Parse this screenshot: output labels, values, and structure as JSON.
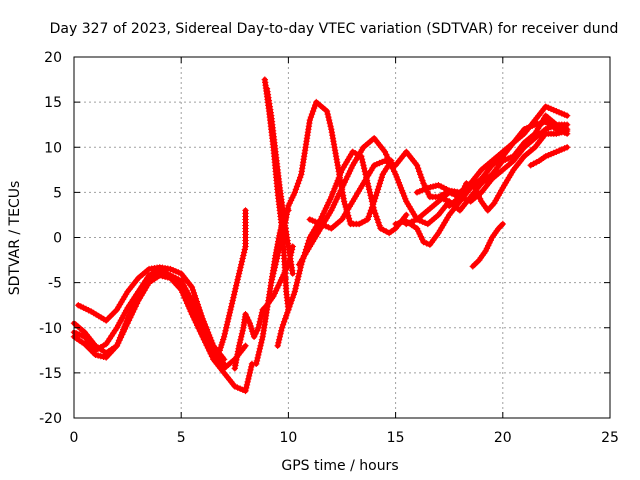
{
  "chart_data": {
    "type": "scatter",
    "title": "Day 327 of 2023, Sidereal Day-to-day VTEC variation (SDTVAR) for receiver dund",
    "xlabel": "GPS time / hours",
    "ylabel": "SDTVAR / TECUs",
    "xlim": [
      0,
      25
    ],
    "ylim": [
      -20,
      20
    ],
    "xticks": [
      0,
      5,
      10,
      15,
      20,
      25
    ],
    "yticks": [
      -20,
      -15,
      -10,
      -5,
      0,
      5,
      10,
      15,
      20
    ],
    "xtick_labels": [
      "0",
      "5",
      "10",
      "15",
      "20",
      "25"
    ],
    "ytick_labels": [
      "-20",
      "-15",
      "-10",
      "-5",
      "0",
      "5",
      "10",
      "15",
      "20"
    ],
    "grid": true,
    "legend": "none",
    "marker": "plus",
    "color": "#ff0000",
    "series": [
      {
        "points": [
          [
            0,
            -9.5
          ],
          [
            0.5,
            -10.5
          ],
          [
            1,
            -12
          ],
          [
            1.5,
            -12.8
          ],
          [
            2,
            -12
          ],
          [
            2.5,
            -9
          ],
          [
            3,
            -6.5
          ],
          [
            3.5,
            -4.5
          ],
          [
            4,
            -3.8
          ],
          [
            4.5,
            -4.5
          ],
          [
            5,
            -5.5
          ],
          [
            5.5,
            -8
          ],
          [
            6,
            -10.5
          ],
          [
            6.5,
            -13
          ],
          [
            7,
            -14.5
          ],
          [
            7.5,
            -13.5
          ],
          [
            8,
            -12
          ]
        ]
      },
      {
        "points": [
          [
            0,
            -11
          ],
          [
            0.5,
            -11.8
          ],
          [
            1,
            -13
          ],
          [
            1.5,
            -13.3
          ],
          [
            2,
            -12
          ],
          [
            2.5,
            -9.5
          ],
          [
            3,
            -7
          ],
          [
            3.5,
            -5
          ],
          [
            4,
            -4.2
          ],
          [
            4.5,
            -4.5
          ],
          [
            5,
            -5.8
          ],
          [
            5.5,
            -8.5
          ],
          [
            6,
            -11
          ],
          [
            6.5,
            -13.5
          ],
          [
            7,
            -15
          ],
          [
            7.5,
            -16.5
          ],
          [
            8,
            -17
          ],
          [
            8.3,
            -14
          ]
        ]
      },
      {
        "points": [
          [
            0.2,
            -7.5
          ],
          [
            0.8,
            -8.2
          ],
          [
            1.5,
            -9.2
          ],
          [
            2,
            -8
          ],
          [
            2.5,
            -6
          ],
          [
            3,
            -4.5
          ],
          [
            3.5,
            -3.5
          ],
          [
            4,
            -3.3
          ],
          [
            4.5,
            -3.5
          ],
          [
            5,
            -4
          ],
          [
            5.5,
            -5.5
          ],
          [
            6,
            -9
          ],
          [
            6.5,
            -12
          ],
          [
            7,
            -13.5
          ]
        ]
      },
      {
        "points": [
          [
            0,
            -10.5
          ],
          [
            0.5,
            -11
          ],
          [
            1,
            -12.5
          ],
          [
            1.5,
            -11.8
          ],
          [
            2,
            -10
          ],
          [
            2.5,
            -7.8
          ],
          [
            3,
            -6
          ],
          [
            3.5,
            -4.2
          ],
          [
            4,
            -3.6
          ],
          [
            4.5,
            -4.2
          ],
          [
            5,
            -4.8
          ],
          [
            5.5,
            -7
          ],
          [
            6,
            -10
          ],
          [
            6.5,
            -12.5
          ],
          [
            7,
            -14
          ]
        ]
      },
      {
        "points": [
          [
            6.8,
            -12.5
          ],
          [
            7,
            -11
          ],
          [
            7.2,
            -9
          ],
          [
            7.4,
            -7
          ],
          [
            7.6,
            -5
          ],
          [
            7.8,
            -3
          ],
          [
            8,
            -1
          ],
          [
            8,
            2
          ],
          [
            8,
            3
          ]
        ]
      },
      {
        "points": [
          [
            7.5,
            -14.5
          ],
          [
            7.7,
            -12
          ],
          [
            7.9,
            -10
          ],
          [
            8,
            -8.5
          ],
          [
            8.2,
            -9.5
          ],
          [
            8.4,
            -11
          ],
          [
            8.6,
            -10
          ],
          [
            8.8,
            -8
          ],
          [
            9,
            -7.5
          ],
          [
            9.3,
            -6.5
          ],
          [
            9.6,
            -5
          ],
          [
            10,
            -3
          ],
          [
            10.2,
            -1
          ]
        ]
      },
      {
        "points": [
          [
            8.5,
            -14
          ],
          [
            8.8,
            -11
          ],
          [
            9,
            -8
          ],
          [
            9.2,
            -5
          ],
          [
            9.4,
            -2
          ],
          [
            9.6,
            0.5
          ],
          [
            9.8,
            2.5
          ],
          [
            10,
            3
          ]
        ]
      },
      {
        "points": [
          [
            8.9,
            17.5
          ],
          [
            9.1,
            14
          ],
          [
            9.3,
            10
          ],
          [
            9.5,
            5
          ],
          [
            9.7,
            1
          ],
          [
            9.8,
            -2
          ],
          [
            9.9,
            -6
          ],
          [
            10,
            -8
          ]
        ]
      },
      {
        "points": [
          [
            9.0,
            16.5
          ],
          [
            9.2,
            13.5
          ],
          [
            9.4,
            9.5
          ],
          [
            9.6,
            5.5
          ],
          [
            9.8,
            2
          ],
          [
            10,
            -1
          ],
          [
            10.2,
            -4
          ]
        ]
      },
      {
        "points": [
          [
            9.2,
            -5
          ],
          [
            9.4,
            -3
          ],
          [
            9.6,
            -1
          ],
          [
            9.8,
            1
          ],
          [
            10,
            3.5
          ],
          [
            10.3,
            5
          ],
          [
            10.6,
            7
          ],
          [
            10.8,
            10
          ],
          [
            11,
            13
          ],
          [
            11.3,
            15
          ],
          [
            11.8,
            14
          ],
          [
            12,
            12
          ],
          [
            12.3,
            8
          ],
          [
            12.6,
            4
          ],
          [
            12.9,
            1.5
          ],
          [
            13.3,
            1.5
          ],
          [
            13.7,
            2
          ],
          [
            14,
            4
          ],
          [
            14.4,
            7
          ],
          [
            14.8,
            8.5
          ]
        ]
      },
      {
        "points": [
          [
            9.5,
            -12
          ],
          [
            9.7,
            -10
          ],
          [
            10,
            -8
          ],
          [
            10.3,
            -6
          ],
          [
            10.6,
            -3
          ],
          [
            11,
            0
          ],
          [
            11.5,
            2
          ],
          [
            12,
            4.5
          ],
          [
            12.5,
            7.5
          ],
          [
            13,
            9.5
          ],
          [
            13.4,
            9
          ],
          [
            13.7,
            6
          ],
          [
            14,
            3
          ],
          [
            14.3,
            1
          ],
          [
            14.7,
            0.5
          ],
          [
            15,
            1
          ],
          [
            15.5,
            2.5
          ]
        ]
      },
      {
        "points": [
          [
            10.5,
            -3
          ],
          [
            11,
            -1
          ],
          [
            11.5,
            1
          ],
          [
            12,
            3
          ],
          [
            12.5,
            5.5
          ],
          [
            13,
            8
          ],
          [
            13.5,
            10
          ],
          [
            14,
            11
          ],
          [
            14.5,
            9.5
          ],
          [
            15,
            7
          ],
          [
            15.5,
            4
          ],
          [
            16,
            2
          ],
          [
            16.5,
            1.5
          ],
          [
            17,
            2.5
          ],
          [
            17.5,
            4
          ]
        ]
      },
      {
        "points": [
          [
            11,
            2
          ],
          [
            11.5,
            1.5
          ],
          [
            12,
            1
          ],
          [
            12.5,
            2
          ],
          [
            13,
            4
          ],
          [
            13.5,
            6
          ],
          [
            14,
            8
          ],
          [
            14.5,
            8.5
          ],
          [
            15,
            8
          ],
          [
            15.5,
            9.5
          ],
          [
            16,
            8
          ],
          [
            16.3,
            6
          ],
          [
            16.6,
            4.5
          ],
          [
            17,
            4.5
          ],
          [
            17.4,
            5
          ]
        ]
      },
      {
        "points": [
          [
            15,
            1.5
          ],
          [
            15.5,
            1.8
          ],
          [
            16,
            1
          ],
          [
            16.3,
            -0.5
          ],
          [
            16.6,
            -0.8
          ],
          [
            17,
            0.5
          ],
          [
            17.5,
            2.5
          ],
          [
            18,
            4
          ],
          [
            18.5,
            5.5
          ],
          [
            19,
            6.5
          ],
          [
            19.5,
            8
          ],
          [
            20,
            9
          ],
          [
            20.5,
            10.5
          ],
          [
            21,
            11.5
          ],
          [
            21.5,
            13
          ],
          [
            22,
            14.5
          ],
          [
            22.5,
            14
          ],
          [
            23,
            13.5
          ]
        ]
      },
      {
        "points": [
          [
            15.5,
            1.5
          ],
          [
            16,
            2
          ],
          [
            16.5,
            3
          ],
          [
            17,
            4
          ],
          [
            17.5,
            5
          ],
          [
            18,
            4.5
          ],
          [
            18.5,
            4
          ],
          [
            19,
            5
          ],
          [
            19.5,
            6.5
          ],
          [
            20,
            7.5
          ],
          [
            20.5,
            8.5
          ],
          [
            21,
            10
          ],
          [
            21.5,
            11
          ],
          [
            22,
            12
          ],
          [
            22.5,
            12.5
          ],
          [
            23,
            12
          ]
        ]
      },
      {
        "points": [
          [
            16,
            5
          ],
          [
            16.5,
            5.5
          ],
          [
            17,
            5.8
          ],
          [
            17.5,
            5.2
          ],
          [
            18,
            5
          ],
          [
            18.5,
            6
          ],
          [
            19,
            7.5
          ],
          [
            19.5,
            8.5
          ],
          [
            20,
            9.5
          ],
          [
            20.5,
            10.5
          ],
          [
            21,
            12
          ],
          [
            21.5,
            12.5
          ],
          [
            22,
            12.8
          ],
          [
            22.5,
            12
          ],
          [
            23,
            11.5
          ]
        ]
      },
      {
        "points": [
          [
            17,
            4.5
          ],
          [
            17.5,
            4
          ],
          [
            18,
            3
          ],
          [
            18.5,
            4.5
          ],
          [
            19,
            6
          ],
          [
            19.5,
            7
          ],
          [
            20,
            8.5
          ],
          [
            20.5,
            9
          ],
          [
            21,
            10.5
          ],
          [
            21.5,
            11.5
          ],
          [
            22,
            13.5
          ],
          [
            22.5,
            12.5
          ],
          [
            23,
            12.5
          ]
        ]
      },
      {
        "points": [
          [
            17.5,
            3.5
          ],
          [
            18,
            4.5
          ],
          [
            18.3,
            6
          ],
          [
            18.7,
            5.5
          ],
          [
            19,
            4
          ],
          [
            19.3,
            3
          ],
          [
            19.6,
            3.8
          ],
          [
            20,
            5.5
          ],
          [
            20.5,
            7.5
          ],
          [
            21,
            9
          ],
          [
            21.5,
            10
          ],
          [
            22,
            11.5
          ],
          [
            22.5,
            11.5
          ],
          [
            23,
            11.8
          ]
        ]
      },
      {
        "points": [
          [
            18.6,
            -3.2
          ],
          [
            18.9,
            -2.5
          ],
          [
            19.2,
            -1.5
          ],
          [
            19.5,
            0
          ],
          [
            19.8,
            1
          ],
          [
            20,
            1.5
          ]
        ]
      },
      {
        "points": [
          [
            21.3,
            8
          ],
          [
            21.7,
            8.5
          ],
          [
            22,
            9
          ],
          [
            22.5,
            9.5
          ],
          [
            23,
            10
          ]
        ]
      }
    ]
  }
}
